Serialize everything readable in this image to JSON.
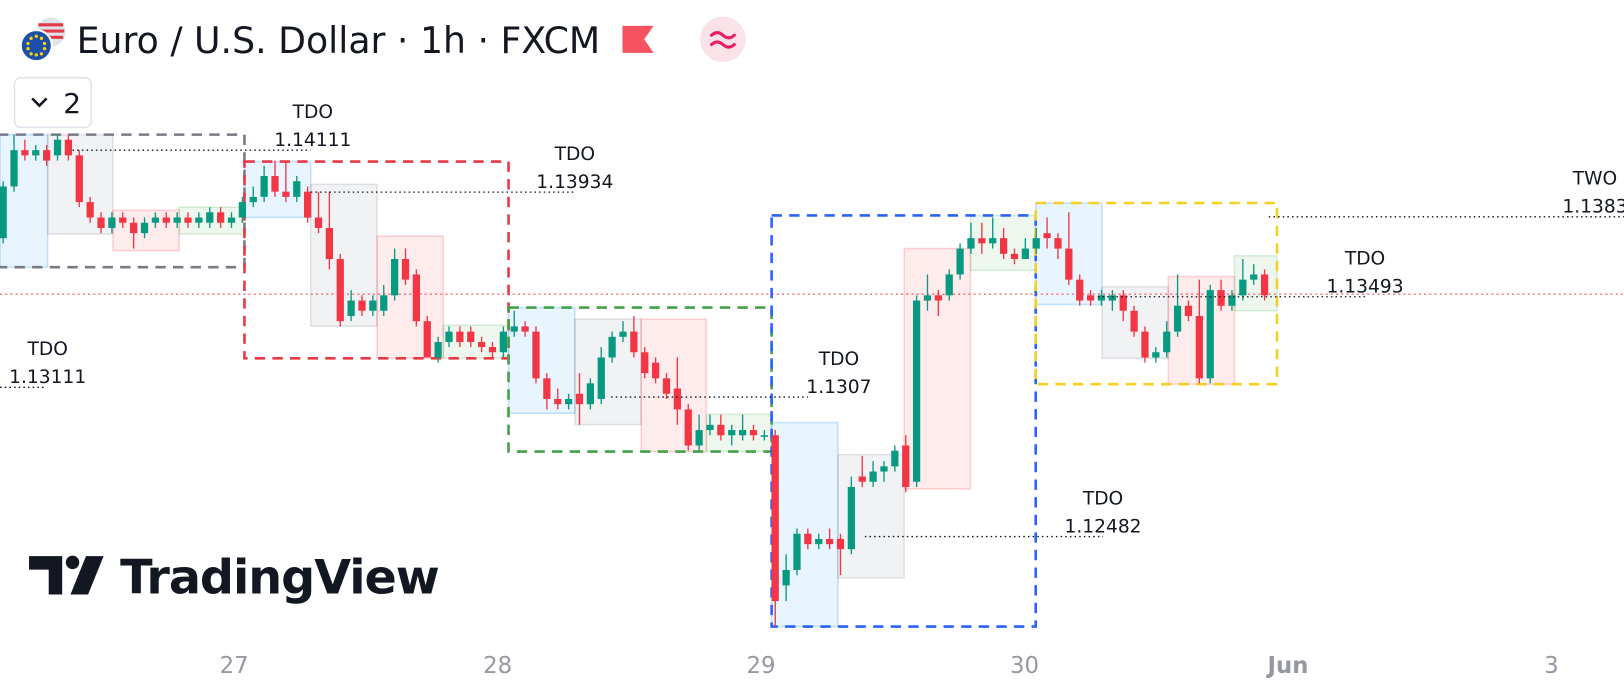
{
  "chart_data": {
    "type": "candlestick",
    "title": "Euro / U.S. Dollar · 1h · FXCM",
    "indicator_count": "2",
    "watermark": "TradingView",
    "x_labels": [
      "27",
      "28",
      "29",
      "30",
      "Jun",
      "3"
    ],
    "ylim": [
      1.12037,
      1.14744
    ],
    "up_color": "#089981",
    "down_color": "#f23645",
    "annotations": [
      {
        "label": "TDO",
        "value": 1.14111
      },
      {
        "label": "TDO",
        "value": 1.13934
      },
      {
        "label": "TWO",
        "value": 1.1383
      },
      {
        "label": "TDO",
        "value": 1.13493
      },
      {
        "label": "TDO",
        "value": 1.1307
      },
      {
        "label": "TDO",
        "value": 1.13111
      },
      {
        "label": "TDO",
        "value": 1.12482
      }
    ],
    "candles": [
      [
        1.1374,
        1.1398,
        1.13718,
        1.13958
      ],
      [
        1.13958,
        1.14177,
        1.13936,
        1.14111
      ],
      [
        1.14111,
        1.14155,
        1.14067,
        1.14089
      ],
      [
        1.14089,
        1.14133,
        1.14067,
        1.14111
      ],
      [
        1.14111,
        1.14133,
        1.14045,
        1.14067
      ],
      [
        1.14089,
        1.14177,
        1.14067,
        1.14155
      ],
      [
        1.14155,
        1.14177,
        1.14067,
        1.14089
      ],
      [
        1.14089,
        1.14111,
        1.13871,
        1.13892
      ],
      [
        1.13892,
        1.13914,
        1.13805,
        1.13827
      ],
      [
        1.13827,
        1.13849,
        1.13761,
        1.13783
      ],
      [
        1.13783,
        1.13849,
        1.13761,
        1.13827
      ],
      [
        1.13827,
        1.13849,
        1.13783,
        1.13805
      ],
      [
        1.13805,
        1.13827,
        1.13696,
        1.13761
      ],
      [
        1.13761,
        1.13827,
        1.1374,
        1.13805
      ],
      [
        1.13805,
        1.13849,
        1.13783,
        1.13827
      ],
      [
        1.13827,
        1.13849,
        1.13783,
        1.13805
      ],
      [
        1.13805,
        1.13849,
        1.13783,
        1.13827
      ],
      [
        1.13827,
        1.13849,
        1.13783,
        1.13805
      ],
      [
        1.13805,
        1.13849,
        1.13783,
        1.13827
      ],
      [
        1.13805,
        1.13871,
        1.13783,
        1.13849
      ],
      [
        1.13849,
        1.13871,
        1.13783,
        1.13805
      ],
      [
        1.13805,
        1.13849,
        1.13783,
        1.13827
      ],
      [
        1.13827,
        1.13914,
        1.13805,
        1.13892
      ],
      [
        1.13892,
        1.13958,
        1.13871,
        1.13914
      ],
      [
        1.13914,
        1.14045,
        1.13892,
        1.14002
      ],
      [
        1.14002,
        1.14067,
        1.13914,
        1.13936
      ],
      [
        1.13936,
        1.14067,
        1.13892,
        1.13914
      ],
      [
        1.13914,
        1.14002,
        1.13892,
        1.1398
      ],
      [
        1.13936,
        1.13958,
        1.13805,
        1.13827
      ],
      [
        1.13827,
        1.13936,
        1.13761,
        1.13783
      ],
      [
        1.13783,
        1.13936,
        1.13608,
        1.13652
      ],
      [
        1.13652,
        1.13674,
        1.13368,
        1.1339
      ],
      [
        1.13412,
        1.13521,
        1.1339,
        1.13477
      ],
      [
        1.13477,
        1.13499,
        1.13412,
        1.13434
      ],
      [
        1.13434,
        1.13499,
        1.13412,
        1.13477
      ],
      [
        1.13434,
        1.13543,
        1.13412,
        1.13499
      ],
      [
        1.13499,
        1.13696,
        1.13477,
        1.13652
      ],
      [
        1.13652,
        1.13696,
        1.13543,
        1.13565
      ],
      [
        1.13587,
        1.13608,
        1.13368,
        1.1339
      ],
      [
        1.1339,
        1.13412,
        1.13237,
        1.13237
      ],
      [
        1.13237,
        1.13324,
        1.13215,
        1.13302
      ],
      [
        1.13302,
        1.13368,
        1.13281,
        1.13346
      ],
      [
        1.13346,
        1.13368,
        1.13281,
        1.13302
      ],
      [
        1.13346,
        1.13368,
        1.13281,
        1.13302
      ],
      [
        1.13302,
        1.13324,
        1.13259,
        1.13281
      ],
      [
        1.13281,
        1.13302,
        1.13237,
        1.13259
      ],
      [
        1.13259,
        1.13368,
        1.13237,
        1.13346
      ],
      [
        1.13346,
        1.13434,
        1.13324,
        1.13368
      ],
      [
        1.13368,
        1.1339,
        1.13324,
        1.13346
      ],
      [
        1.13346,
        1.13368,
        1.13128,
        1.13149
      ],
      [
        1.13149,
        1.13171,
        1.13018,
        1.13062
      ],
      [
        1.13062,
        1.13106,
        1.13018,
        1.1304
      ],
      [
        1.1304,
        1.13084,
        1.13018,
        1.13062
      ],
      [
        1.13084,
        1.13171,
        1.12953,
        1.1304
      ],
      [
        1.1304,
        1.13149,
        1.13018,
        1.13128
      ],
      [
        1.13062,
        1.13281,
        1.1304,
        1.13237
      ],
      [
        1.13237,
        1.13346,
        1.13215,
        1.13324
      ],
      [
        1.13324,
        1.1339,
        1.13302,
        1.13346
      ],
      [
        1.13346,
        1.13412,
        1.13237,
        1.13259
      ],
      [
        1.13259,
        1.13281,
        1.13149,
        1.13171
      ],
      [
        1.13215,
        1.13237,
        1.13128,
        1.13149
      ],
      [
        1.13149,
        1.13171,
        1.13062,
        1.13084
      ],
      [
        1.13106,
        1.13237,
        1.12953,
        1.13018
      ],
      [
        1.13018,
        1.1304,
        1.12844,
        1.12866
      ],
      [
        1.12866,
        1.12996,
        1.12844,
        1.12931
      ],
      [
        1.12931,
        1.12996,
        1.12909,
        1.12953
      ],
      [
        1.12953,
        1.12996,
        1.12887,
        1.12909
      ],
      [
        1.12909,
        1.12953,
        1.12866,
        1.12931
      ],
      [
        1.12909,
        1.12996,
        1.12887,
        1.12931
      ],
      [
        1.12931,
        1.12953,
        1.12887,
        1.12909
      ],
      [
        1.12909,
        1.12931,
        1.12887,
        1.12909
      ],
      [
        1.12909,
        1.12931,
        1.12101,
        1.1221
      ],
      [
        1.12276,
        1.12407,
        1.1221,
        1.12341
      ],
      [
        1.12341,
        1.12516,
        1.12319,
        1.12494
      ],
      [
        1.12494,
        1.12516,
        1.12429,
        1.1245
      ],
      [
        1.1245,
        1.12494,
        1.12429,
        1.12472
      ],
      [
        1.12472,
        1.12516,
        1.12429,
        1.1245
      ],
      [
        1.12472,
        1.12494,
        1.12319,
        1.12429
      ],
      [
        1.12429,
        1.12735,
        1.12407,
        1.12691
      ],
      [
        1.12735,
        1.12822,
        1.12691,
        1.12713
      ],
      [
        1.12713,
        1.128,
        1.12691,
        1.12756
      ],
      [
        1.12756,
        1.128,
        1.12713,
        1.12778
      ],
      [
        1.12778,
        1.12866,
        1.12756,
        1.12844
      ],
      [
        1.12866,
        1.12909,
        1.12669,
        1.12691
      ],
      [
        1.12713,
        1.13499,
        1.12691,
        1.13477
      ],
      [
        1.13477,
        1.13587,
        1.13434,
        1.13499
      ],
      [
        1.13499,
        1.13521,
        1.13412,
        1.13477
      ],
      [
        1.13499,
        1.13608,
        1.13477,
        1.13587
      ],
      [
        1.13587,
        1.13718,
        1.13565,
        1.13696
      ],
      [
        1.13696,
        1.13805,
        1.13674,
        1.1374
      ],
      [
        1.1374,
        1.13805,
        1.13674,
        1.13718
      ],
      [
        1.13718,
        1.13827,
        1.13696,
        1.1374
      ],
      [
        1.1374,
        1.13783,
        1.13652,
        1.13674
      ],
      [
        1.13674,
        1.13696,
        1.1363,
        1.13652
      ],
      [
        1.13652,
        1.1374,
        1.13652,
        1.13696
      ],
      [
        1.13696,
        1.13783,
        1.13674,
        1.1374
      ],
      [
        1.13761,
        1.13827,
        1.13696,
        1.1374
      ],
      [
        1.1374,
        1.13761,
        1.13652,
        1.13696
      ],
      [
        1.13696,
        1.13849,
        1.13543,
        1.13565
      ],
      [
        1.13565,
        1.13587,
        1.13455,
        1.13477
      ],
      [
        1.13499,
        1.13521,
        1.13455,
        1.13477
      ],
      [
        1.13477,
        1.13521,
        1.13455,
        1.13499
      ],
      [
        1.13477,
        1.13521,
        1.13434,
        1.13499
      ],
      [
        1.13499,
        1.13521,
        1.1339,
        1.13434
      ],
      [
        1.13434,
        1.13455,
        1.13324,
        1.13346
      ],
      [
        1.13346,
        1.13368,
        1.13215,
        1.13237
      ],
      [
        1.13237,
        1.13281,
        1.13215,
        1.13259
      ],
      [
        1.13259,
        1.1339,
        1.13237,
        1.13346
      ],
      [
        1.13346,
        1.13587,
        1.13324,
        1.13455
      ],
      [
        1.13455,
        1.13477,
        1.1339,
        1.13412
      ],
      [
        1.13412,
        1.13565,
        1.13128,
        1.13149
      ],
      [
        1.13149,
        1.13543,
        1.13128,
        1.13521
      ],
      [
        1.13521,
        1.13565,
        1.13434,
        1.13455
      ],
      [
        1.13455,
        1.13521,
        1.13434,
        1.13499
      ],
      [
        1.13499,
        1.13652,
        1.13477,
        1.13565
      ],
      [
        1.13565,
        1.1363,
        1.13543,
        1.13587
      ],
      [
        1.13587,
        1.13608,
        1.13477,
        1.13499
      ]
    ]
  }
}
